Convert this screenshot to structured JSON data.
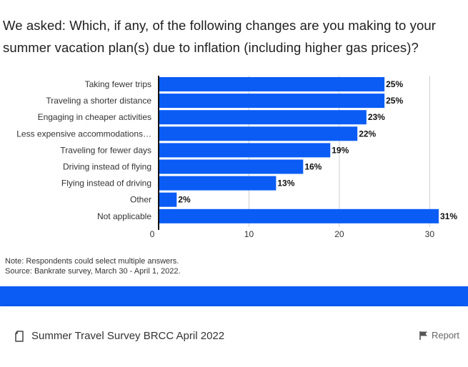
{
  "title": {
    "line1": "We asked: Which, if any, of the following changes are you making to your",
    "line2": "summer vacation plan(s) due to inflation (including higher gas prices)?"
  },
  "chart_data": {
    "type": "bar",
    "orientation": "horizontal",
    "categories": [
      "Taking fewer trips",
      "Traveling a shorter distance",
      "Engaging in cheaper activities",
      "Less expensive accommodations…",
      "Traveling for fewer days",
      "Driving instead of flying",
      "Flying instead of driving",
      "Other",
      "Not applicable"
    ],
    "values": [
      25,
      25,
      23,
      22,
      19,
      16,
      13,
      2,
      31
    ],
    "value_labels": [
      "25%",
      "25%",
      "23%",
      "22%",
      "19%",
      "16%",
      "13%",
      "2%",
      "31%"
    ],
    "xlim": [
      0,
      31
    ],
    "ticks": [
      0,
      10,
      20,
      30
    ],
    "tick_labels": [
      "0",
      "10",
      "20",
      "30"
    ],
    "grid": true,
    "bar_color": "#0a5cf5"
  },
  "notes": {
    "line1": "Note: Respondents could select multiple answers.",
    "line2": "Source: Bankrate survey, March 30 - April 1, 2022."
  },
  "footer": {
    "doc_title": "Summer Travel Survey BRCC April 2022",
    "report_label": "Report",
    "doc_icon": "document-icon",
    "report_icon": "flag-icon"
  },
  "colors": {
    "accent": "#0a5cf5"
  }
}
